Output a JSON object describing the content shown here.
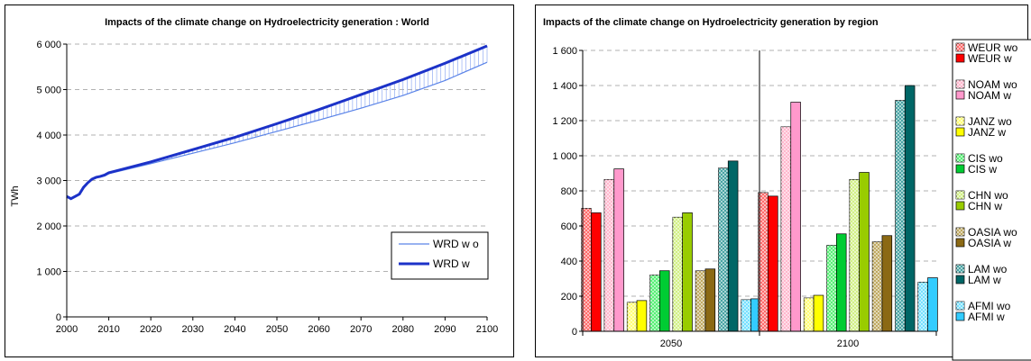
{
  "chart_data": [
    {
      "type": "line",
      "title": "Impacts of the climate change on Hydroelectricity generation : World",
      "xlabel": "",
      "ylabel": "TWh",
      "xlim": [
        2000,
        2100
      ],
      "ylim": [
        0,
        6000
      ],
      "x_ticks": [
        "2000",
        "2010",
        "2020",
        "2030",
        "2040",
        "2050",
        "2060",
        "2070",
        "2080",
        "2090",
        "2100"
      ],
      "y_ticks": [
        "0",
        "1 000",
        "2 000",
        "3 000",
        "4 000",
        "5 000",
        "6 000"
      ],
      "grid": true,
      "legend_position": "bottom-right",
      "series": [
        {
          "name": "WRD w o",
          "color": "#5b84e8",
          "x": [
            2000,
            2001,
            2002,
            2003,
            2004,
            2005,
            2006,
            2007,
            2008,
            2009,
            2010,
            2020,
            2030,
            2040,
            2050,
            2060,
            2070,
            2080,
            2090,
            2100
          ],
          "values": [
            2650,
            2600,
            2650,
            2700,
            2850,
            2950,
            3030,
            3060,
            3080,
            3100,
            3150,
            3370,
            3600,
            3830,
            4080,
            4330,
            4590,
            4870,
            5200,
            5600
          ]
        },
        {
          "name": "WRD w",
          "color": "#1c32c8",
          "x": [
            2000,
            2001,
            2002,
            2003,
            2004,
            2005,
            2006,
            2007,
            2008,
            2009,
            2010,
            2020,
            2030,
            2040,
            2050,
            2060,
            2070,
            2080,
            2090,
            2100
          ],
          "values": [
            2650,
            2600,
            2650,
            2700,
            2850,
            2950,
            3030,
            3070,
            3090,
            3120,
            3170,
            3410,
            3680,
            3950,
            4250,
            4560,
            4890,
            5220,
            5580,
            5960
          ]
        }
      ]
    },
    {
      "type": "bar",
      "title": "Impacts of the climate change on Hydroelectricity generation by region",
      "xlabel": "",
      "ylabel": "",
      "ylim": [
        0,
        1600
      ],
      "y_ticks": [
        "0",
        "200",
        "400",
        "600",
        "800",
        "1 000",
        "1 200",
        "1 400",
        "1 600"
      ],
      "categories": [
        "2050",
        "2100"
      ],
      "grid": true,
      "legend_position": "right",
      "series": [
        {
          "name": "WEUR wo",
          "color": "#ff5a5a",
          "pattern": true,
          "values": [
            700,
            790
          ]
        },
        {
          "name": "WEUR w",
          "color": "#ff0000",
          "pattern": false,
          "values": [
            675,
            770
          ]
        },
        {
          "name": "NOAM wo",
          "color": "#ffb0c8",
          "pattern": true,
          "values": [
            865,
            1165
          ]
        },
        {
          "name": "NOAM w",
          "color": "#ff99cc",
          "pattern": false,
          "values": [
            925,
            1305
          ]
        },
        {
          "name": "JANZ wo",
          "color": "#ffff66",
          "pattern": true,
          "values": [
            165,
            190
          ]
        },
        {
          "name": "JANZ w",
          "color": "#ffff00",
          "pattern": false,
          "values": [
            175,
            205
          ]
        },
        {
          "name": "CIS wo",
          "color": "#44ee66",
          "pattern": true,
          "values": [
            320,
            490
          ]
        },
        {
          "name": "CIS w",
          "color": "#00cc33",
          "pattern": false,
          "values": [
            345,
            555
          ]
        },
        {
          "name": "CHN wo",
          "color": "#ccee77",
          "pattern": true,
          "values": [
            650,
            865
          ]
        },
        {
          "name": "CHN w",
          "color": "#99cc00",
          "pattern": false,
          "values": [
            675,
            905
          ]
        },
        {
          "name": "OASIA wo",
          "color": "#b8a050",
          "pattern": true,
          "values": [
            345,
            510
          ]
        },
        {
          "name": "OASIA w",
          "color": "#8b6914",
          "pattern": false,
          "values": [
            355,
            545
          ]
        },
        {
          "name": "LAM wo",
          "color": "#339999",
          "pattern": true,
          "values": [
            930,
            1315
          ]
        },
        {
          "name": "LAM w",
          "color": "#006666",
          "pattern": false,
          "values": [
            970,
            1400
          ]
        },
        {
          "name": "AFMI wo",
          "color": "#66ddff",
          "pattern": true,
          "values": [
            180,
            280
          ]
        },
        {
          "name": "AFMI w",
          "color": "#33ccff",
          "pattern": false,
          "values": [
            185,
            305
          ]
        }
      ]
    }
  ]
}
